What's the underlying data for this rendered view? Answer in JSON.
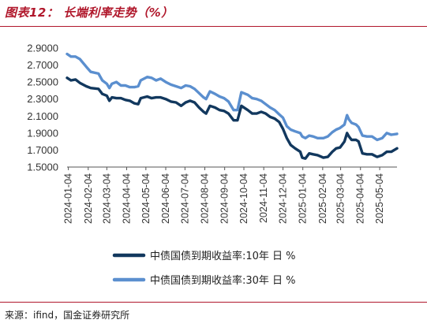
{
  "header": {
    "title": "图表12： 长端利率走势（%）"
  },
  "footer": {
    "source": "来源：ifind，国金证券研究所"
  },
  "chart_data": {
    "type": "line",
    "title": "长端利率走势（%）",
    "xlabel": "",
    "ylabel": "",
    "ylim": [
      1.5,
      2.9
    ],
    "yticks": [
      "1.5000",
      "1.7000",
      "1.9000",
      "2.1000",
      "2.3000",
      "2.5000",
      "2.7000",
      "2.9000"
    ],
    "x_ticks": [
      "2024-01-04",
      "2024-02-04",
      "2024-03-04",
      "2024-04-04",
      "2024-05-04",
      "2024-06-04",
      "2024-07-04",
      "2024-08-04",
      "2024-09-04",
      "2024-10-04",
      "2024-11-04",
      "2024-12-04",
      "2025-01-04",
      "2025-02-04",
      "2025-03-04",
      "2025-04-04",
      "2025-05-04"
    ],
    "x_range": [
      "2024-01-02",
      "2025-05-31"
    ],
    "grid": false,
    "legend_position": "bottom",
    "colors": {
      "series_10y": "#12385e",
      "series_30y": "#5b8fcf"
    },
    "series": [
      {
        "name": "中债国债到期收益率:10年 日 %",
        "color": "#12385e",
        "points": [
          [
            "2024-01-02",
            2.55
          ],
          [
            "2024-01-08",
            2.52
          ],
          [
            "2024-01-15",
            2.53
          ],
          [
            "2024-01-22",
            2.49
          ],
          [
            "2024-02-01",
            2.45
          ],
          [
            "2024-02-08",
            2.43
          ],
          [
            "2024-02-20",
            2.42
          ],
          [
            "2024-02-26",
            2.36
          ],
          [
            "2024-03-04",
            2.34
          ],
          [
            "2024-03-08",
            2.28
          ],
          [
            "2024-03-12",
            2.32
          ],
          [
            "2024-03-19",
            2.31
          ],
          [
            "2024-03-26",
            2.31
          ],
          [
            "2024-04-02",
            2.29
          ],
          [
            "2024-04-09",
            2.28
          ],
          [
            "2024-04-16",
            2.25
          ],
          [
            "2024-04-22",
            2.24
          ],
          [
            "2024-04-26",
            2.31
          ],
          [
            "2024-05-06",
            2.33
          ],
          [
            "2024-05-13",
            2.31
          ],
          [
            "2024-05-20",
            2.32
          ],
          [
            "2024-05-27",
            2.32
          ],
          [
            "2024-06-04",
            2.3
          ],
          [
            "2024-06-12",
            2.27
          ],
          [
            "2024-06-20",
            2.26
          ],
          [
            "2024-06-28",
            2.22
          ],
          [
            "2024-07-05",
            2.26
          ],
          [
            "2024-07-12",
            2.28
          ],
          [
            "2024-07-19",
            2.26
          ],
          [
            "2024-07-26",
            2.2
          ],
          [
            "2024-08-02",
            2.15
          ],
          [
            "2024-08-06",
            2.13
          ],
          [
            "2024-08-12",
            2.22
          ],
          [
            "2024-08-20",
            2.2
          ],
          [
            "2024-08-27",
            2.17
          ],
          [
            "2024-09-03",
            2.16
          ],
          [
            "2024-09-10",
            2.13
          ],
          [
            "2024-09-18",
            2.05
          ],
          [
            "2024-09-24",
            2.05
          ],
          [
            "2024-09-30",
            2.22
          ],
          [
            "2024-10-10",
            2.17
          ],
          [
            "2024-10-17",
            2.13
          ],
          [
            "2024-10-24",
            2.13
          ],
          [
            "2024-10-31",
            2.15
          ],
          [
            "2024-11-07",
            2.13
          ],
          [
            "2024-11-14",
            2.09
          ],
          [
            "2024-11-21",
            2.07
          ],
          [
            "2024-11-28",
            2.03
          ],
          [
            "2024-12-04",
            1.95
          ],
          [
            "2024-12-10",
            1.84
          ],
          [
            "2024-12-16",
            1.76
          ],
          [
            "2024-12-23",
            1.72
          ],
          [
            "2024-12-31",
            1.68
          ],
          [
            "2025-01-03",
            1.61
          ],
          [
            "2025-01-08",
            1.6
          ],
          [
            "2025-01-14",
            1.66
          ],
          [
            "2025-01-20",
            1.65
          ],
          [
            "2025-01-27",
            1.64
          ],
          [
            "2025-02-05",
            1.61
          ],
          [
            "2025-02-12",
            1.62
          ],
          [
            "2025-02-19",
            1.68
          ],
          [
            "2025-02-25",
            1.72
          ],
          [
            "2025-03-03",
            1.73
          ],
          [
            "2025-03-10",
            1.8
          ],
          [
            "2025-03-14",
            1.9
          ],
          [
            "2025-03-17",
            1.86
          ],
          [
            "2025-03-21",
            1.82
          ],
          [
            "2025-03-28",
            1.82
          ],
          [
            "2025-04-01",
            1.8
          ],
          [
            "2025-04-07",
            1.66
          ],
          [
            "2025-04-14",
            1.65
          ],
          [
            "2025-04-22",
            1.65
          ],
          [
            "2025-04-30",
            1.62
          ],
          [
            "2025-05-08",
            1.64
          ],
          [
            "2025-05-15",
            1.68
          ],
          [
            "2025-05-22",
            1.68
          ],
          [
            "2025-05-31",
            1.72
          ]
        ]
      },
      {
        "name": "中债国债到期收益率:30年 日 %",
        "color": "#5b8fcf",
        "points": [
          [
            "2024-01-02",
            2.83
          ],
          [
            "2024-01-08",
            2.8
          ],
          [
            "2024-01-15",
            2.8
          ],
          [
            "2024-01-22",
            2.77
          ],
          [
            "2024-02-01",
            2.68
          ],
          [
            "2024-02-08",
            2.62
          ],
          [
            "2024-02-20",
            2.6
          ],
          [
            "2024-02-26",
            2.52
          ],
          [
            "2024-03-04",
            2.48
          ],
          [
            "2024-03-08",
            2.43
          ],
          [
            "2024-03-12",
            2.48
          ],
          [
            "2024-03-19",
            2.5
          ],
          [
            "2024-03-26",
            2.46
          ],
          [
            "2024-04-02",
            2.46
          ],
          [
            "2024-04-09",
            2.44
          ],
          [
            "2024-04-16",
            2.44
          ],
          [
            "2024-04-22",
            2.45
          ],
          [
            "2024-04-26",
            2.52
          ],
          [
            "2024-05-06",
            2.56
          ],
          [
            "2024-05-13",
            2.55
          ],
          [
            "2024-05-20",
            2.52
          ],
          [
            "2024-05-27",
            2.54
          ],
          [
            "2024-06-04",
            2.5
          ],
          [
            "2024-06-12",
            2.47
          ],
          [
            "2024-06-20",
            2.45
          ],
          [
            "2024-06-28",
            2.43
          ],
          [
            "2024-07-05",
            2.46
          ],
          [
            "2024-07-12",
            2.45
          ],
          [
            "2024-07-19",
            2.42
          ],
          [
            "2024-07-26",
            2.37
          ],
          [
            "2024-08-02",
            2.32
          ],
          [
            "2024-08-06",
            2.3
          ],
          [
            "2024-08-12",
            2.39
          ],
          [
            "2024-08-20",
            2.36
          ],
          [
            "2024-08-27",
            2.33
          ],
          [
            "2024-09-03",
            2.31
          ],
          [
            "2024-09-10",
            2.27
          ],
          [
            "2024-09-18",
            2.17
          ],
          [
            "2024-09-24",
            2.17
          ],
          [
            "2024-09-30",
            2.38
          ],
          [
            "2024-10-10",
            2.35
          ],
          [
            "2024-10-17",
            2.31
          ],
          [
            "2024-10-24",
            2.3
          ],
          [
            "2024-10-31",
            2.28
          ],
          [
            "2024-11-07",
            2.24
          ],
          [
            "2024-11-14",
            2.2
          ],
          [
            "2024-11-21",
            2.17
          ],
          [
            "2024-11-28",
            2.12
          ],
          [
            "2024-12-04",
            2.08
          ],
          [
            "2024-12-10",
            1.98
          ],
          [
            "2024-12-16",
            1.94
          ],
          [
            "2024-12-23",
            1.92
          ],
          [
            "2024-12-31",
            1.9
          ],
          [
            "2025-01-03",
            1.86
          ],
          [
            "2025-01-08",
            1.84
          ],
          [
            "2025-01-14",
            1.87
          ],
          [
            "2025-01-20",
            1.86
          ],
          [
            "2025-01-27",
            1.84
          ],
          [
            "2025-02-05",
            1.84
          ],
          [
            "2025-02-12",
            1.86
          ],
          [
            "2025-02-19",
            1.91
          ],
          [
            "2025-02-25",
            1.94
          ],
          [
            "2025-03-03",
            1.96
          ],
          [
            "2025-03-10",
            2.0
          ],
          [
            "2025-03-14",
            2.11
          ],
          [
            "2025-03-17",
            2.06
          ],
          [
            "2025-03-21",
            2.02
          ],
          [
            "2025-03-28",
            2.0
          ],
          [
            "2025-04-01",
            1.97
          ],
          [
            "2025-04-07",
            1.87
          ],
          [
            "2025-04-14",
            1.86
          ],
          [
            "2025-04-22",
            1.86
          ],
          [
            "2025-04-30",
            1.82
          ],
          [
            "2025-05-08",
            1.84
          ],
          [
            "2025-05-15",
            1.9
          ],
          [
            "2025-05-22",
            1.88
          ],
          [
            "2025-05-31",
            1.89
          ]
        ]
      }
    ]
  }
}
